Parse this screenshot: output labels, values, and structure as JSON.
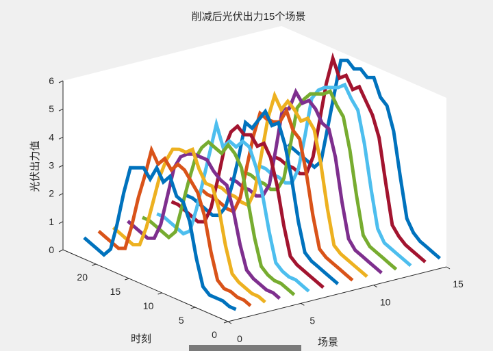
{
  "chart_data": {
    "type": "line3d",
    "title": "削减后光伏出力15个场景",
    "xlabel": "场景",
    "ylabel": "时刻",
    "zlabel": "光伏出力值",
    "xlim": [
      0,
      15
    ],
    "ylim": [
      0,
      25
    ],
    "zlim": [
      0,
      6
    ],
    "xticks": [
      "0",
      "5",
      "10",
      "15"
    ],
    "yticks": [
      "0",
      "5",
      "10",
      "15",
      "20"
    ],
    "zticks": [
      "0",
      "1",
      "2",
      "3",
      "4",
      "5",
      "6"
    ],
    "grid": false,
    "colors": [
      "#0072bd",
      "#d95319",
      "#edb120",
      "#7e2f8e",
      "#77ac30",
      "#4dbeee",
      "#a2142f"
    ],
    "time": [
      1,
      2,
      3,
      4,
      5,
      6,
      7,
      8,
      9,
      10,
      11,
      12,
      13,
      14,
      15,
      16,
      17,
      18,
      19,
      20,
      21,
      22,
      23,
      24
    ],
    "series": [
      {
        "scene": 1,
        "values": [
          0.2,
          0.2,
          0.3,
          0.3,
          0.3,
          0.5,
          1.4,
          2.6,
          3.2,
          3.3,
          3.9,
          3.6,
          4.0,
          3.5,
          3.8,
          3.7,
          3.6,
          2.6,
          1.4,
          0.4,
          0.1,
          0.2,
          0.3,
          0.4
        ]
      },
      {
        "scene": 2,
        "values": [
          0.2,
          0.3,
          0.3,
          0.4,
          0.4,
          0.6,
          1.5,
          2.7,
          3.4,
          3.7,
          4.0,
          4.1,
          3.8,
          4.1,
          3.8,
          4.2,
          3.2,
          2.3,
          1.2,
          0.3,
          0.2,
          0.3,
          0.4,
          0.5
        ]
      },
      {
        "scene": 3,
        "values": [
          0.2,
          0.3,
          0.3,
          0.4,
          0.5,
          0.7,
          1.6,
          2.8,
          3.5,
          3.5,
          3.9,
          4.5,
          4.3,
          4.3,
          4.2,
          3.7,
          3.0,
          2.0,
          1.0,
          0.3,
          0.2,
          0.3,
          0.4,
          0.5
        ]
      },
      {
        "scene": 4,
        "values": [
          0.2,
          0.3,
          0.3,
          0.4,
          0.5,
          0.7,
          1.5,
          2.6,
          3.4,
          3.5,
          3.7,
          4.0,
          4.0,
          4.0,
          3.9,
          3.7,
          3.2,
          2.1,
          1.0,
          0.4,
          0.3,
          0.4,
          0.5,
          0.6
        ]
      },
      {
        "scene": 5,
        "values": [
          0.2,
          0.3,
          0.4,
          0.4,
          0.5,
          0.7,
          1.6,
          2.8,
          3.9,
          4.3,
          4.5,
          4.1,
          4.2,
          4.3,
          4.0,
          3.5,
          2.6,
          1.6,
          0.6,
          0.3,
          0.4,
          0.5,
          0.6,
          0.6
        ]
      },
      {
        "scene": 6,
        "values": [
          0.2,
          0.3,
          0.4,
          0.4,
          0.5,
          0.7,
          1.7,
          2.9,
          3.8,
          4.4,
          4.5,
          4.2,
          4.3,
          4.0,
          4.7,
          3.6,
          2.5,
          1.4,
          0.5,
          0.3,
          0.4,
          0.5,
          0.6,
          0.6
        ]
      },
      {
        "scene": 7,
        "values": [
          0.2,
          0.3,
          0.4,
          0.5,
          0.6,
          0.8,
          1.8,
          3.1,
          4.0,
          4.4,
          4.2,
          4.5,
          4.4,
          4.6,
          4.3,
          3.6,
          2.4,
          1.3,
          0.7,
          0.6,
          0.7,
          0.8,
          0.9,
          0.9
        ]
      },
      {
        "scene": 8,
        "values": [
          0.2,
          0.3,
          0.4,
          0.5,
          0.6,
          0.8,
          1.8,
          3.2,
          4.3,
          5.0,
          4.8,
          5.2,
          4.8,
          4.4,
          4.5,
          3.2,
          2.1,
          1.2,
          0.8,
          0.7,
          0.8,
          0.9,
          1.0,
          1.0
        ]
      },
      {
        "scene": 9,
        "values": [
          0.2,
          0.3,
          0.4,
          0.5,
          0.6,
          0.8,
          1.9,
          3.3,
          4.4,
          4.6,
          5.2,
          4.7,
          4.6,
          4.6,
          4.7,
          3.8,
          2.6,
          1.4,
          0.8,
          0.8,
          0.9,
          1.0,
          1.0,
          1.1
        ]
      },
      {
        "scene": 10,
        "values": [
          0.2,
          0.3,
          0.4,
          0.5,
          0.6,
          0.8,
          2.0,
          3.5,
          4.6,
          4.9,
          4.7,
          5.0,
          5.2,
          4.8,
          5.2,
          4.3,
          2.9,
          1.5,
          0.9,
          0.9,
          1.0,
          1.0,
          1.1,
          1.1
        ]
      },
      {
        "scene": 11,
        "values": [
          0.2,
          0.3,
          0.4,
          0.5,
          0.6,
          0.9,
          2.1,
          3.6,
          4.5,
          4.6,
          5.0,
          5.2,
          5.0,
          5.3,
          4.6,
          4.5,
          3.0,
          1.6,
          1.1,
          1.0,
          1.1,
          1.1,
          1.2,
          1.2
        ]
      },
      {
        "scene": 12,
        "values": [
          0.2,
          0.3,
          0.4,
          0.5,
          0.6,
          0.9,
          2.2,
          3.7,
          4.8,
          5.1,
          5.5,
          5.3,
          5.2,
          5.1,
          4.8,
          4.4,
          3.0,
          1.7,
          1.2,
          1.1,
          1.2,
          1.2,
          1.3,
          1.3
        ]
      },
      {
        "scene": 13,
        "values": [
          0.2,
          0.3,
          0.4,
          0.5,
          0.6,
          1.0,
          2.3,
          3.8,
          4.9,
          5.2,
          5.6,
          5.4,
          5.3,
          5.2,
          5.0,
          4.6,
          3.2,
          1.9,
          1.3,
          1.2,
          1.3,
          1.3,
          1.4,
          1.4
        ]
      },
      {
        "scene": 14,
        "values": [
          0.2,
          0.3,
          0.4,
          0.5,
          0.7,
          1.0,
          2.4,
          3.9,
          4.6,
          5.0,
          5.4,
          5.2,
          5.6,
          5.4,
          6.0,
          5.0,
          3.6,
          2.2,
          1.5,
          1.4,
          1.5,
          1.5,
          1.6,
          1.6
        ]
      },
      {
        "scene": 15,
        "values": [
          0.2,
          0.3,
          0.4,
          0.5,
          0.7,
          1.1,
          2.5,
          4.0,
          4.8,
          5.0,
          5.6,
          5.5,
          5.7,
          5.6,
          5.8,
          5.7,
          4.4,
          3.1,
          1.8,
          1.5,
          1.6,
          1.7,
          1.8,
          1.9
        ]
      }
    ]
  }
}
